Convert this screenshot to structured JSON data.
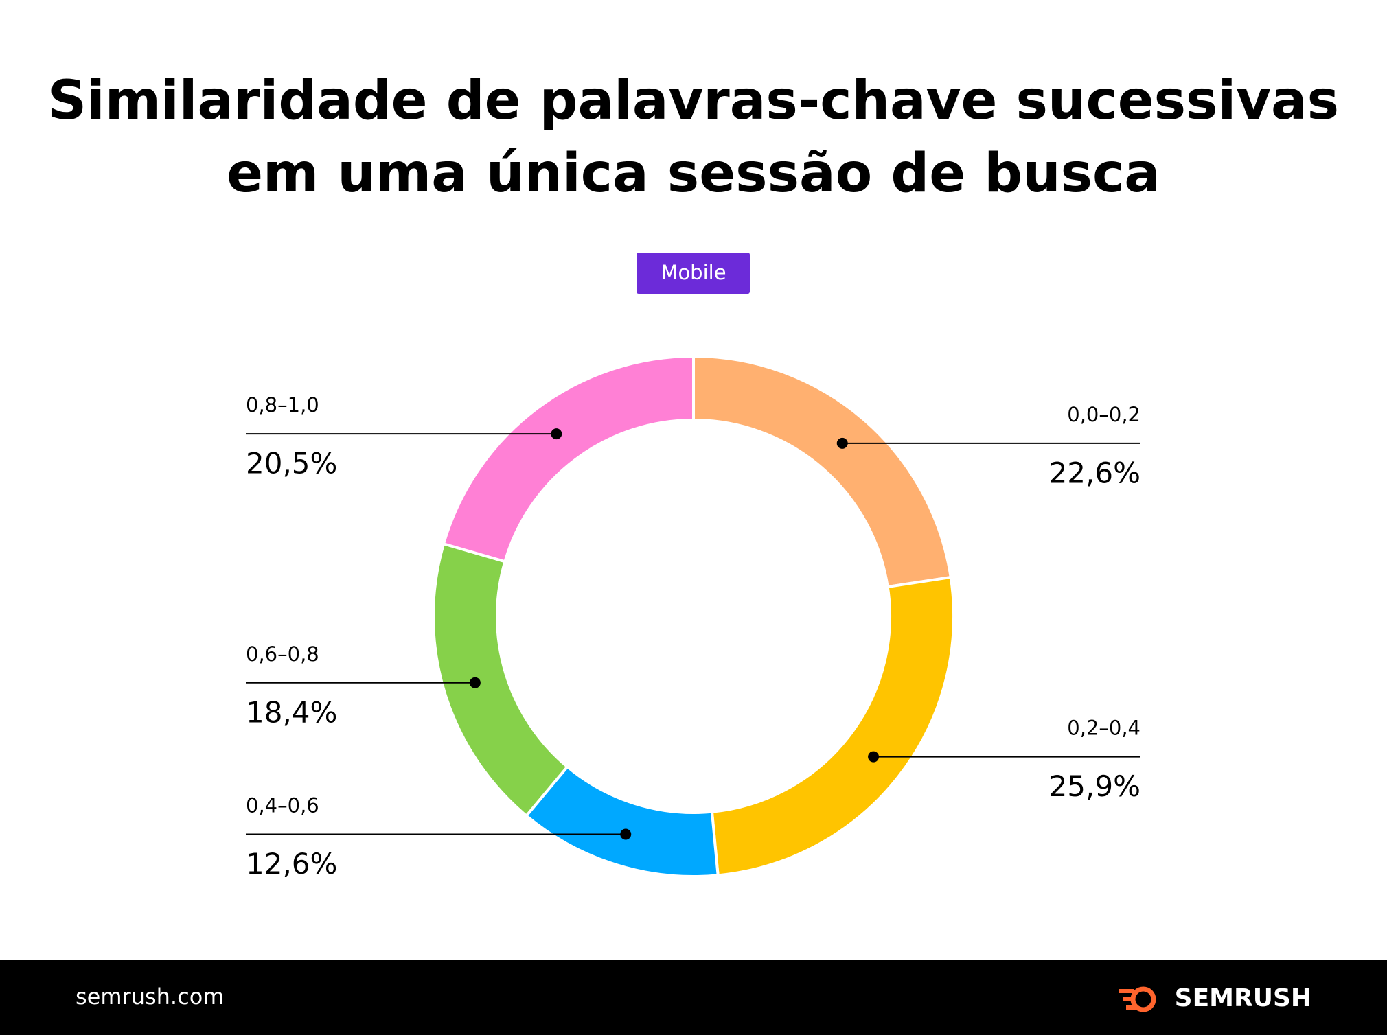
{
  "chart_data": {
    "type": "donut",
    "title": "Similaridade de palavras-chave sucessivas em uma única sessão de busca",
    "badge": "Mobile",
    "categories": [
      "0,0–0,2",
      "0,2–0,4",
      "0,4–0,6",
      "0,6–0,8",
      "0,8–1,0"
    ],
    "values": [
      22.6,
      25.9,
      12.6,
      18.4,
      20.5
    ],
    "value_labels": [
      "22,6%",
      "25,9%",
      "12,6%",
      "18,4%",
      "20,5%"
    ],
    "colors": [
      "#ffb070",
      "#ffc400",
      "#00a8ff",
      "#86d14a",
      "#ff80d5"
    ]
  },
  "footer": {
    "site": "semrush.com",
    "brand": "SEMRUSH"
  }
}
